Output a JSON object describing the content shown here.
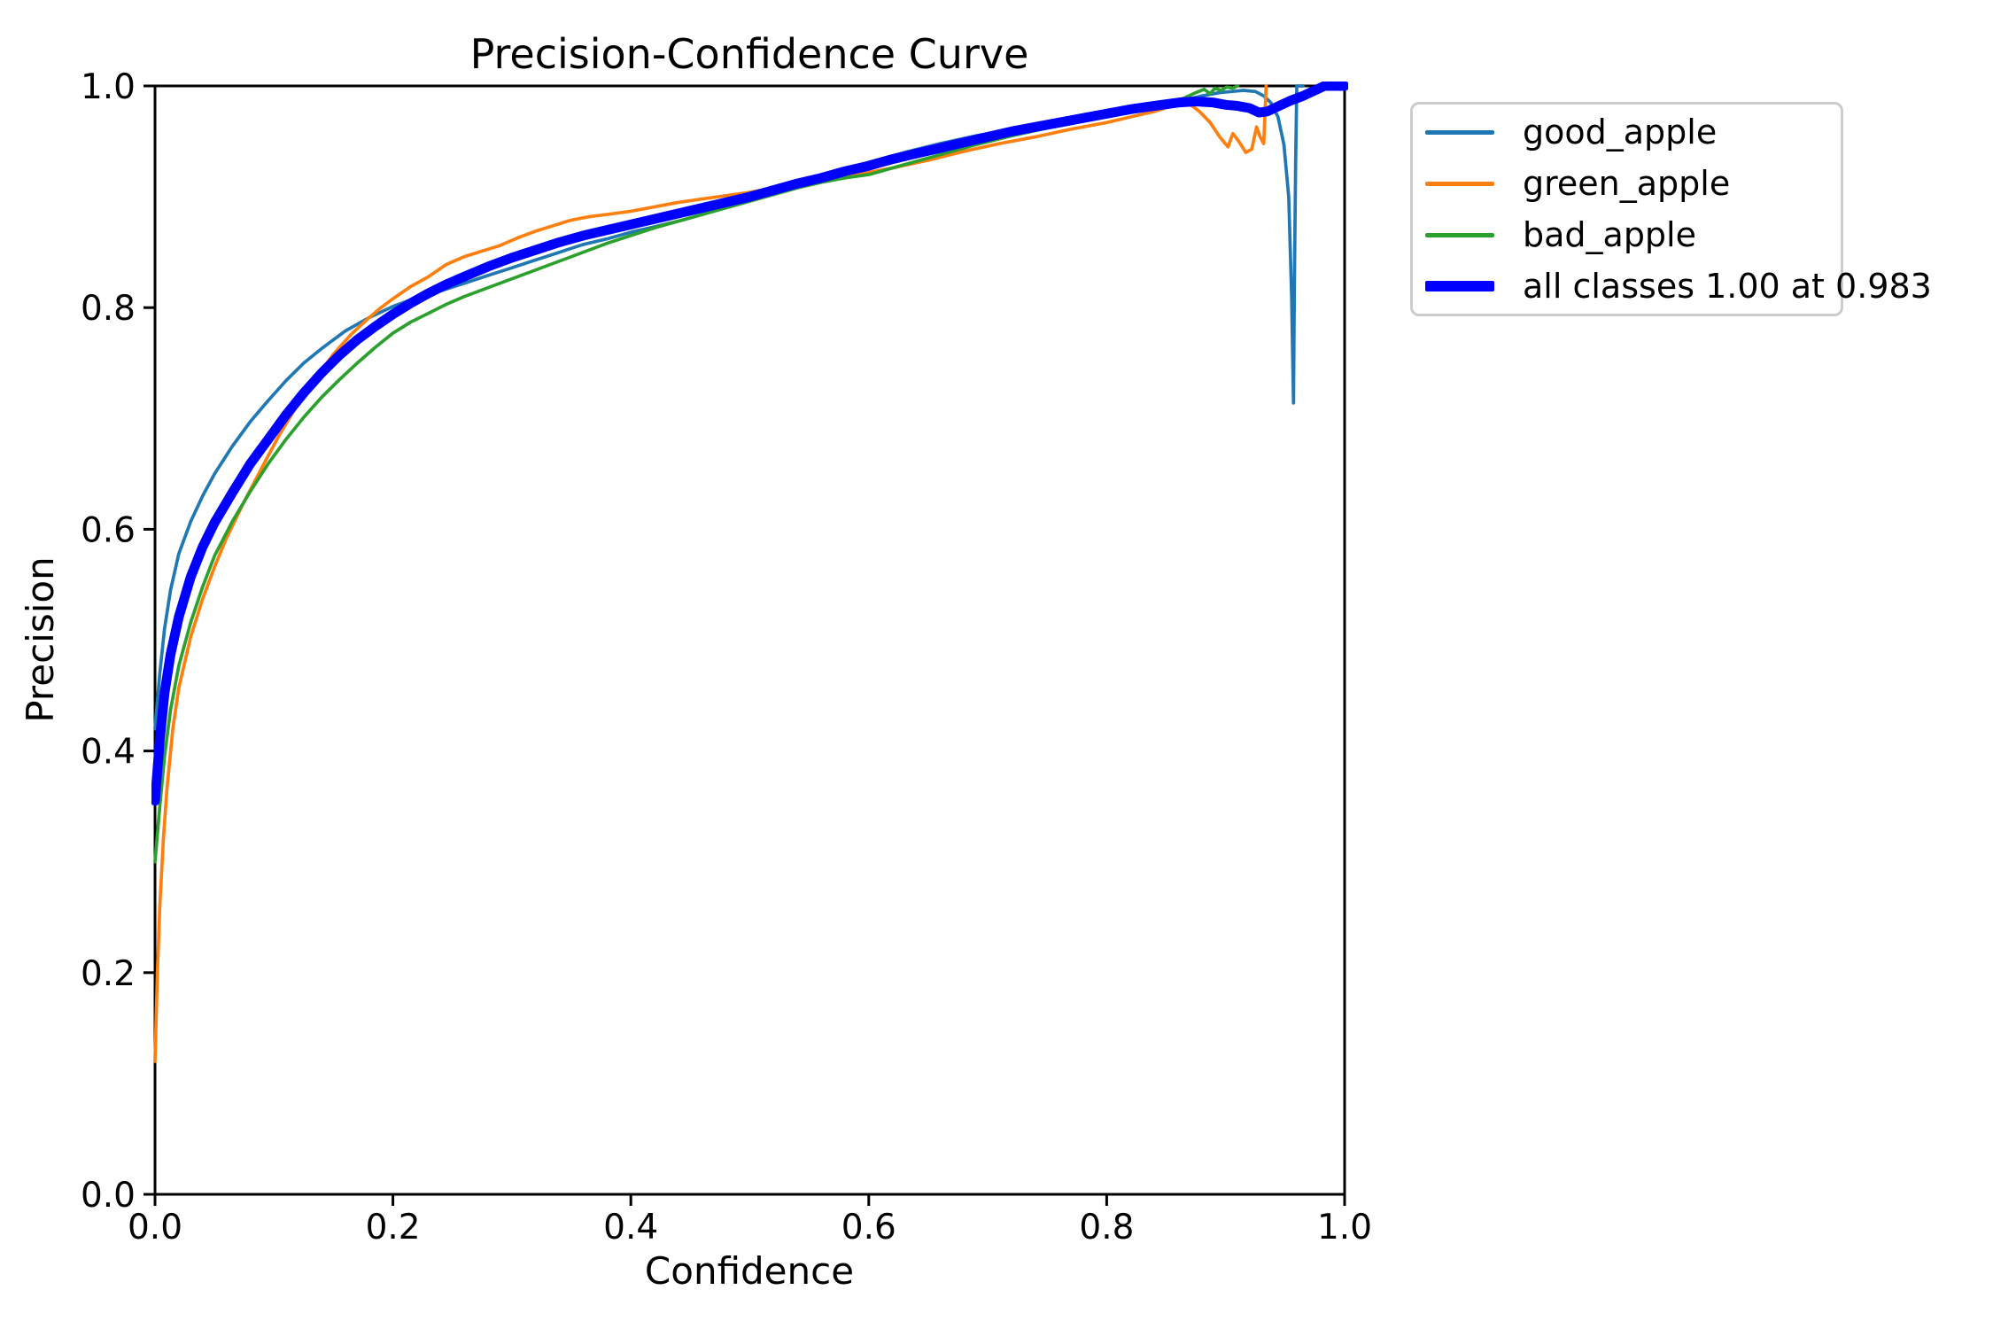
{
  "chart_data": {
    "type": "line",
    "title": "Precision-Confidence Curve",
    "xlabel": "Confidence",
    "ylabel": "Precision",
    "xlim": [
      0.0,
      1.0
    ],
    "ylim": [
      0.0,
      1.0
    ],
    "x_ticks": [
      "0.0",
      "0.2",
      "0.4",
      "0.6",
      "0.8",
      "1.0"
    ],
    "y_ticks": [
      "0.0",
      "0.2",
      "0.4",
      "0.6",
      "0.8",
      "1.0"
    ],
    "grid": false,
    "legend_position": "outside-upper-right",
    "axis_color": "#000000",
    "series": [
      {
        "name": "good_apple",
        "color": "#1f77b4",
        "width": 3.7,
        "points": [
          [
            0,
            0.42
          ],
          [
            0.004,
            0.47
          ],
          [
            0.008,
            0.51
          ],
          [
            0.013,
            0.545
          ],
          [
            0.02,
            0.578
          ],
          [
            0.03,
            0.607
          ],
          [
            0.04,
            0.63
          ],
          [
            0.05,
            0.65
          ],
          [
            0.065,
            0.675
          ],
          [
            0.08,
            0.697
          ],
          [
            0.095,
            0.716
          ],
          [
            0.11,
            0.734
          ],
          [
            0.125,
            0.75
          ],
          [
            0.14,
            0.763
          ],
          [
            0.16,
            0.779
          ],
          [
            0.18,
            0.791
          ],
          [
            0.2,
            0.801
          ],
          [
            0.22,
            0.809
          ],
          [
            0.24,
            0.815
          ],
          [
            0.26,
            0.822
          ],
          [
            0.28,
            0.829
          ],
          [
            0.3,
            0.836
          ],
          [
            0.32,
            0.843
          ],
          [
            0.34,
            0.85
          ],
          [
            0.36,
            0.857
          ],
          [
            0.38,
            0.862
          ],
          [
            0.4,
            0.868
          ],
          [
            0.42,
            0.873
          ],
          [
            0.44,
            0.878
          ],
          [
            0.46,
            0.884
          ],
          [
            0.48,
            0.891
          ],
          [
            0.5,
            0.897
          ],
          [
            0.52,
            0.904
          ],
          [
            0.54,
            0.911
          ],
          [
            0.56,
            0.917
          ],
          [
            0.58,
            0.924
          ],
          [
            0.6,
            0.931
          ],
          [
            0.63,
            0.94
          ],
          [
            0.66,
            0.948
          ],
          [
            0.69,
            0.955
          ],
          [
            0.72,
            0.961
          ],
          [
            0.75,
            0.966
          ],
          [
            0.78,
            0.972
          ],
          [
            0.81,
            0.977
          ],
          [
            0.84,
            0.982
          ],
          [
            0.86,
            0.986
          ],
          [
            0.88,
            0.991
          ],
          [
            0.895,
            0.994
          ],
          [
            0.905,
            0.995
          ],
          [
            0.915,
            0.996
          ],
          [
            0.925,
            0.995
          ],
          [
            0.932,
            0.991
          ],
          [
            0.938,
            0.985
          ],
          [
            0.944,
            0.972
          ],
          [
            0.949,
            0.947
          ],
          [
            0.953,
            0.9
          ],
          [
            0.9555,
            0.81
          ],
          [
            0.957,
            0.714
          ],
          [
            0.9578,
            0.82
          ],
          [
            0.9588,
            0.93
          ],
          [
            0.9598,
            1.0
          ],
          [
            0.965,
            1.0
          ]
        ]
      },
      {
        "name": "green_apple",
        "color": "#ff7f0e",
        "width": 3.7,
        "points": [
          [
            0,
            0.12
          ],
          [
            0.002,
            0.2
          ],
          [
            0.004,
            0.26
          ],
          [
            0.007,
            0.32
          ],
          [
            0.01,
            0.365
          ],
          [
            0.015,
            0.42
          ],
          [
            0.02,
            0.457
          ],
          [
            0.03,
            0.503
          ],
          [
            0.04,
            0.537
          ],
          [
            0.05,
            0.566
          ],
          [
            0.06,
            0.592
          ],
          [
            0.075,
            0.625
          ],
          [
            0.09,
            0.656
          ],
          [
            0.105,
            0.686
          ],
          [
            0.12,
            0.713
          ],
          [
            0.135,
            0.736
          ],
          [
            0.15,
            0.758
          ],
          [
            0.165,
            0.776
          ],
          [
            0.18,
            0.791
          ],
          [
            0.19,
            0.8
          ],
          [
            0.2,
            0.808
          ],
          [
            0.215,
            0.819
          ],
          [
            0.23,
            0.828
          ],
          [
            0.245,
            0.839
          ],
          [
            0.26,
            0.846
          ],
          [
            0.275,
            0.851
          ],
          [
            0.29,
            0.856
          ],
          [
            0.305,
            0.863
          ],
          [
            0.32,
            0.869
          ],
          [
            0.335,
            0.874
          ],
          [
            0.35,
            0.879
          ],
          [
            0.365,
            0.882
          ],
          [
            0.38,
            0.884
          ],
          [
            0.4,
            0.887
          ],
          [
            0.42,
            0.891
          ],
          [
            0.44,
            0.895
          ],
          [
            0.46,
            0.898
          ],
          [
            0.48,
            0.901
          ],
          [
            0.5,
            0.904
          ],
          [
            0.53,
            0.91
          ],
          [
            0.56,
            0.916
          ],
          [
            0.59,
            0.92
          ],
          [
            0.62,
            0.926
          ],
          [
            0.65,
            0.933
          ],
          [
            0.68,
            0.941
          ],
          [
            0.71,
            0.948
          ],
          [
            0.74,
            0.954
          ],
          [
            0.77,
            0.961
          ],
          [
            0.8,
            0.967
          ],
          [
            0.82,
            0.972
          ],
          [
            0.84,
            0.977
          ],
          [
            0.855,
            0.982
          ],
          [
            0.868,
            0.985
          ],
          [
            0.878,
            0.977
          ],
          [
            0.887,
            0.967
          ],
          [
            0.895,
            0.954
          ],
          [
            0.902,
            0.945
          ],
          [
            0.906,
            0.957
          ],
          [
            0.911,
            0.95
          ],
          [
            0.917,
            0.94
          ],
          [
            0.922,
            0.943
          ],
          [
            0.926,
            0.963
          ],
          [
            0.929,
            0.954
          ],
          [
            0.932,
            0.948
          ],
          [
            0.934,
            1.0
          ]
        ]
      },
      {
        "name": "bad_apple",
        "color": "#2ca02c",
        "width": 3.7,
        "points": [
          [
            0,
            0.3
          ],
          [
            0.004,
            0.35
          ],
          [
            0.008,
            0.395
          ],
          [
            0.013,
            0.437
          ],
          [
            0.02,
            0.477
          ],
          [
            0.03,
            0.516
          ],
          [
            0.04,
            0.548
          ],
          [
            0.05,
            0.576
          ],
          [
            0.065,
            0.607
          ],
          [
            0.08,
            0.634
          ],
          [
            0.095,
            0.659
          ],
          [
            0.11,
            0.681
          ],
          [
            0.125,
            0.701
          ],
          [
            0.14,
            0.719
          ],
          [
            0.155,
            0.735
          ],
          [
            0.17,
            0.75
          ],
          [
            0.185,
            0.764
          ],
          [
            0.2,
            0.777
          ],
          [
            0.215,
            0.787
          ],
          [
            0.23,
            0.795
          ],
          [
            0.245,
            0.803
          ],
          [
            0.26,
            0.81
          ],
          [
            0.28,
            0.818
          ],
          [
            0.3,
            0.826
          ],
          [
            0.32,
            0.834
          ],
          [
            0.34,
            0.842
          ],
          [
            0.36,
            0.85
          ],
          [
            0.38,
            0.858
          ],
          [
            0.4,
            0.865
          ],
          [
            0.42,
            0.872
          ],
          [
            0.44,
            0.878
          ],
          [
            0.46,
            0.884
          ],
          [
            0.48,
            0.89
          ],
          [
            0.5,
            0.896
          ],
          [
            0.52,
            0.902
          ],
          [
            0.54,
            0.908
          ],
          [
            0.56,
            0.913
          ],
          [
            0.58,
            0.917
          ],
          [
            0.6,
            0.92
          ],
          [
            0.63,
            0.929
          ],
          [
            0.66,
            0.938
          ],
          [
            0.69,
            0.947
          ],
          [
            0.72,
            0.955
          ],
          [
            0.75,
            0.962
          ],
          [
            0.77,
            0.966
          ],
          [
            0.79,
            0.971
          ],
          [
            0.81,
            0.975
          ],
          [
            0.83,
            0.98
          ],
          [
            0.85,
            0.985
          ],
          [
            0.865,
            0.989
          ],
          [
            0.875,
            0.994
          ],
          [
            0.882,
            0.997
          ],
          [
            0.887,
            0.993
          ],
          [
            0.891,
            0.998
          ],
          [
            0.896,
            0.996
          ],
          [
            0.901,
            0.999
          ],
          [
            0.906,
            0.998
          ],
          [
            0.91,
            1.0
          ]
        ]
      },
      {
        "name": "all classes 1.00 at 0.983",
        "color": "#0000ff",
        "width": 11,
        "points": [
          [
            0,
            0.355
          ],
          [
            0.004,
            0.41
          ],
          [
            0.008,
            0.452
          ],
          [
            0.013,
            0.487
          ],
          [
            0.02,
            0.521
          ],
          [
            0.03,
            0.557
          ],
          [
            0.04,
            0.584
          ],
          [
            0.05,
            0.606
          ],
          [
            0.065,
            0.633
          ],
          [
            0.08,
            0.659
          ],
          [
            0.095,
            0.681
          ],
          [
            0.11,
            0.703
          ],
          [
            0.125,
            0.723
          ],
          [
            0.14,
            0.741
          ],
          [
            0.155,
            0.757
          ],
          [
            0.17,
            0.771
          ],
          [
            0.185,
            0.783
          ],
          [
            0.2,
            0.794
          ],
          [
            0.215,
            0.804
          ],
          [
            0.23,
            0.813
          ],
          [
            0.245,
            0.821
          ],
          [
            0.26,
            0.828
          ],
          [
            0.28,
            0.837
          ],
          [
            0.3,
            0.845
          ],
          [
            0.32,
            0.852
          ],
          [
            0.34,
            0.859
          ],
          [
            0.36,
            0.865
          ],
          [
            0.38,
            0.87
          ],
          [
            0.4,
            0.875
          ],
          [
            0.42,
            0.88
          ],
          [
            0.44,
            0.885
          ],
          [
            0.46,
            0.89
          ],
          [
            0.48,
            0.895
          ],
          [
            0.5,
            0.9
          ],
          [
            0.52,
            0.906
          ],
          [
            0.54,
            0.912
          ],
          [
            0.56,
            0.917
          ],
          [
            0.58,
            0.923
          ],
          [
            0.6,
            0.928
          ],
          [
            0.62,
            0.934
          ],
          [
            0.64,
            0.939
          ],
          [
            0.66,
            0.944
          ],
          [
            0.68,
            0.949
          ],
          [
            0.7,
            0.954
          ],
          [
            0.72,
            0.959
          ],
          [
            0.74,
            0.963
          ],
          [
            0.76,
            0.967
          ],
          [
            0.78,
            0.971
          ],
          [
            0.8,
            0.975
          ],
          [
            0.82,
            0.979
          ],
          [
            0.84,
            0.982
          ],
          [
            0.86,
            0.985
          ],
          [
            0.875,
            0.986
          ],
          [
            0.89,
            0.985
          ],
          [
            0.9,
            0.983
          ],
          [
            0.91,
            0.982
          ],
          [
            0.92,
            0.98
          ],
          [
            0.928,
            0.976
          ],
          [
            0.935,
            0.977
          ],
          [
            0.945,
            0.982
          ],
          [
            0.955,
            0.987
          ],
          [
            0.965,
            0.991
          ],
          [
            0.975,
            0.996
          ],
          [
            0.983,
            1.0
          ],
          [
            1,
            1
          ]
        ]
      }
    ]
  },
  "legend": {
    "border_color": "#cccccc",
    "items": [
      {
        "label": "good_apple"
      },
      {
        "label": "green_apple"
      },
      {
        "label": "bad_apple"
      },
      {
        "label": "all classes 1.00 at 0.983"
      }
    ]
  }
}
